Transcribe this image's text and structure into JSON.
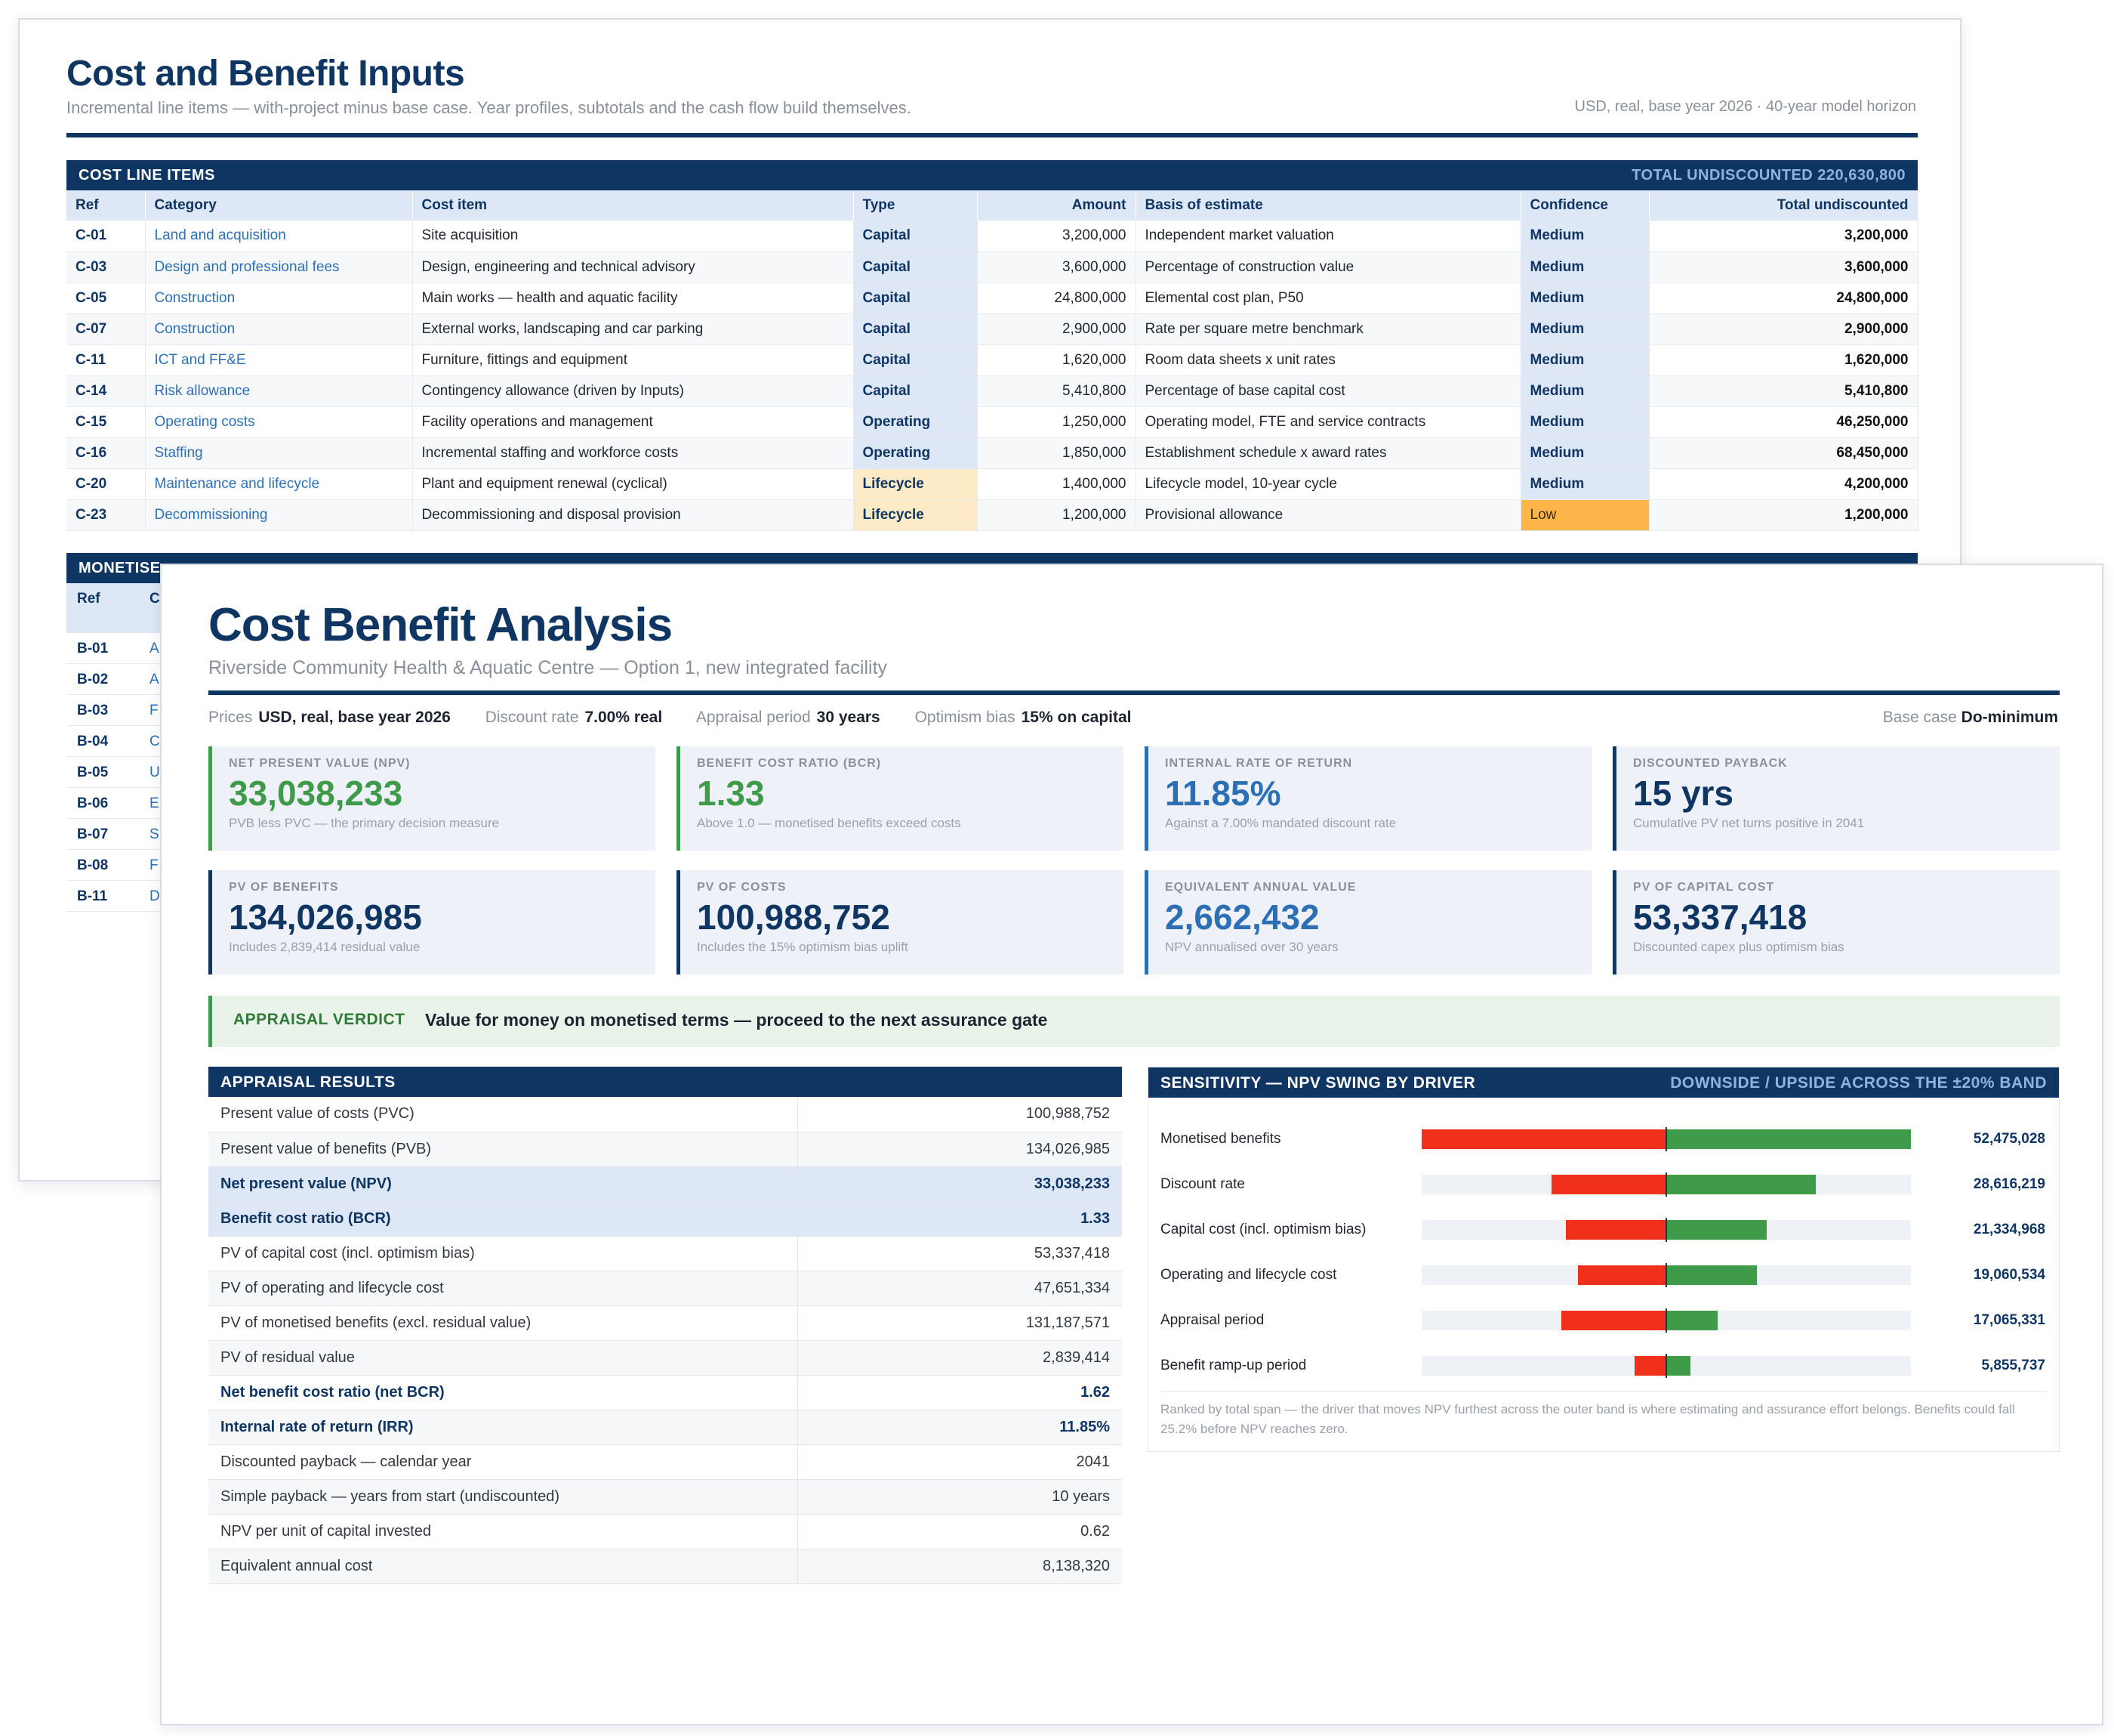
{
  "inputs": {
    "title": "Cost and Benefit Inputs",
    "subtitle": "Incremental line items — with-project minus base case. Year profiles, subtotals and the cash flow build themselves.",
    "meta": "USD, real, base year 2026 · 40-year model horizon",
    "cost_table": {
      "title": "COST LINE ITEMS",
      "total": "TOTAL UNDISCOUNTED 220,630,800",
      "headers": [
        "Ref",
        "Category",
        "Cost item",
        "Type",
        "Amount",
        "Basis of estimate",
        "Confidence",
        "Total undiscounted"
      ],
      "rows": [
        {
          "ref": "C-01",
          "category": "Land and acquisition",
          "item": "Site acquisition",
          "type": "Capital",
          "amount": "3,200,000",
          "basis": "Independent market valuation",
          "confidence": "Medium",
          "total": "3,200,000"
        },
        {
          "ref": "C-03",
          "category": "Design and professional fees",
          "item": "Design, engineering and technical advisory",
          "type": "Capital",
          "amount": "3,600,000",
          "basis": "Percentage of construction value",
          "confidence": "Medium",
          "total": "3,600,000"
        },
        {
          "ref": "C-05",
          "category": "Construction",
          "item": "Main works — health and aquatic facility",
          "type": "Capital",
          "amount": "24,800,000",
          "basis": "Elemental cost plan, P50",
          "confidence": "Medium",
          "total": "24,800,000"
        },
        {
          "ref": "C-07",
          "category": "Construction",
          "item": "External works, landscaping and car parking",
          "type": "Capital",
          "amount": "2,900,000",
          "basis": "Rate per square metre benchmark",
          "confidence": "Medium",
          "total": "2,900,000"
        },
        {
          "ref": "C-11",
          "category": "ICT and FF&E",
          "item": "Furniture, fittings and equipment",
          "type": "Capital",
          "amount": "1,620,000",
          "basis": "Room data sheets x unit rates",
          "confidence": "Medium",
          "total": "1,620,000"
        },
        {
          "ref": "C-14",
          "category": "Risk allowance",
          "item": "Contingency allowance (driven by Inputs)",
          "type": "Capital",
          "amount": "5,410,800",
          "basis": "Percentage of base capital cost",
          "confidence": "Medium",
          "total": "5,410,800"
        },
        {
          "ref": "C-15",
          "category": "Operating costs",
          "item": "Facility operations and management",
          "type": "Operating",
          "amount": "1,250,000",
          "basis": "Operating model, FTE and service contracts",
          "confidence": "Medium",
          "total": "46,250,000"
        },
        {
          "ref": "C-16",
          "category": "Staffing",
          "item": "Incremental staffing and workforce costs",
          "type": "Operating",
          "amount": "1,850,000",
          "basis": "Establishment schedule x award rates",
          "confidence": "Medium",
          "total": "68,450,000"
        },
        {
          "ref": "C-20",
          "category": "Maintenance and lifecycle",
          "item": "Plant and equipment renewal (cyclical)",
          "type": "Lifecycle",
          "amount": "1,400,000",
          "basis": "Lifecycle model, 10-year cycle",
          "confidence": "Medium",
          "total": "4,200,000"
        },
        {
          "ref": "C-23",
          "category": "Decommissioning",
          "item": "Decommissioning and disposal provision",
          "type": "Lifecycle",
          "amount": "1,200,000",
          "basis": "Provisional allowance",
          "confidence": "Low",
          "total": "1,200,000"
        }
      ]
    },
    "benefit_table": {
      "title": "MONETISE",
      "headers": [
        "Ref",
        "C"
      ],
      "refs": [
        "B-01",
        "B-02",
        "B-03",
        "B-04",
        "B-05",
        "B-06",
        "B-07",
        "B-08",
        "B-11"
      ],
      "cat_initials": [
        "A",
        "A",
        "F",
        "C",
        "U",
        "E",
        "S",
        "F",
        "D"
      ]
    }
  },
  "analysis": {
    "title": "Cost Benefit Analysis",
    "subtitle": "Riverside Community Health & Aquatic Centre — Option 1, new integrated facility",
    "params": [
      {
        "label": "Prices",
        "value": "USD, real, base year 2026"
      },
      {
        "label": "Discount rate",
        "value": "7.00% real"
      },
      {
        "label": "Appraisal period",
        "value": "30 years"
      },
      {
        "label": "Optimism bias",
        "value": "15% on capital"
      }
    ],
    "base_case": {
      "label": "Base case",
      "value": "Do-minimum"
    },
    "kpis": [
      {
        "label": "NET PRESENT VALUE (NPV)",
        "value": "33,038,233",
        "note": "PVB less PVC — the primary decision measure",
        "color": "#3f9b4a"
      },
      {
        "label": "BENEFIT COST RATIO (BCR)",
        "value": "1.33",
        "note": "Above 1.0 — monetised benefits exceed costs",
        "color": "#3f9b4a"
      },
      {
        "label": "INTERNAL RATE OF RETURN",
        "value": "11.85%",
        "note": "Against a 7.00% mandated discount rate",
        "color": "#2c6fb5"
      },
      {
        "label": "DISCOUNTED PAYBACK",
        "value": "15 yrs",
        "note": "Cumulative PV net turns positive in 2041",
        "color": "#0f3563"
      },
      {
        "label": "PV OF BENEFITS",
        "value": "134,026,985",
        "note": "Includes 2,839,414 residual value",
        "color": "#0f3563"
      },
      {
        "label": "PV OF COSTS",
        "value": "100,988,752",
        "note": "Includes the 15% optimism bias uplift",
        "color": "#0f3563"
      },
      {
        "label": "EQUIVALENT ANNUAL VALUE",
        "value": "2,662,432",
        "note": "NPV annualised over 30 years",
        "color": "#2c6fb5"
      },
      {
        "label": "PV OF CAPITAL COST",
        "value": "53,337,418",
        "note": "Discounted capex plus optimism bias",
        "color": "#0f3563"
      }
    ],
    "verdict": {
      "label": "APPRAISAL VERDICT",
      "text": "Value for money on monetised terms — proceed to the next assurance gate"
    },
    "results": {
      "title": "APPRAISAL RESULTS",
      "rows": [
        {
          "label": "Present value of costs (PVC)",
          "value": "100,988,752"
        },
        {
          "label": "Present value of benefits (PVB)",
          "value": "134,026,985"
        },
        {
          "label": "Net present value (NPV)",
          "value": "33,038,233"
        },
        {
          "label": "Benefit cost ratio (BCR)",
          "value": "1.33"
        },
        {
          "label": "PV of capital cost (incl. optimism bias)",
          "value": "53,337,418"
        },
        {
          "label": "PV of operating and lifecycle cost",
          "value": "47,651,334"
        },
        {
          "label": "PV of monetised benefits (excl. residual value)",
          "value": "131,187,571"
        },
        {
          "label": "PV of residual value",
          "value": "2,839,414"
        },
        {
          "label": "Net benefit cost ratio (net BCR)",
          "value": "1.62"
        },
        {
          "label": "Internal rate of return (IRR)",
          "value": "11.85%"
        },
        {
          "label": "Discounted payback — calendar year",
          "value": "2041"
        },
        {
          "label": "Simple payback — years from start (undiscounted)",
          "value": "10 years"
        },
        {
          "label": "NPV per unit of capital invested",
          "value": "0.62"
        },
        {
          "label": "Equivalent annual cost",
          "value": "8,138,320"
        }
      ]
    },
    "sensitivity": {
      "title": "SENSITIVITY — NPV SWING BY DRIVER",
      "subtitle": "DOWNSIDE / UPSIDE ACROSS THE ±20% BAND",
      "colors": {
        "downside": "#f0301a",
        "upside": "#3f9b4a"
      },
      "drivers": [
        {
          "label": "Monetised benefits",
          "down_share": 1.0,
          "up_share": 1.0,
          "span": "52,475,028"
        },
        {
          "label": "Discount rate",
          "down_share": 0.47,
          "up_share": 0.61,
          "span": "28,616,219"
        },
        {
          "label": "Capital cost (incl. optimism bias)",
          "down_share": 0.41,
          "up_share": 0.41,
          "span": "21,334,968"
        },
        {
          "label": "Operating and lifecycle cost",
          "down_share": 0.36,
          "up_share": 0.37,
          "span": "19,060,534"
        },
        {
          "label": "Appraisal period",
          "down_share": 0.43,
          "up_share": 0.21,
          "span": "17,065,331"
        },
        {
          "label": "Benefit ramp-up period",
          "down_share": 0.13,
          "up_share": 0.1,
          "span": "5,855,737"
        }
      ],
      "note": "Ranked by total span — the driver that moves NPV furthest across the outer band is where estimating and assurance effort belongs. Benefits could fall 25.2% before NPV reaches zero."
    }
  }
}
